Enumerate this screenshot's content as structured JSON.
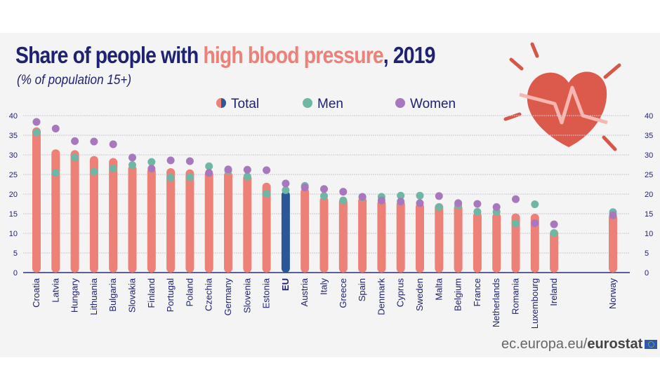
{
  "title_part1": "Share of people with ",
  "title_highlight": "high blood pressure",
  "title_part2": ", 2019",
  "subtitle": "(% of population 15+)",
  "footer": {
    "site": "ec.europa.eu/",
    "brand": "eurostat"
  },
  "colors": {
    "total": "#ed8077",
    "eu": "#2b5799",
    "men": "#6fb7a5",
    "women": "#a977bd",
    "text": "#1f2270"
  },
  "chart_data": {
    "type": "bar",
    "title": "Share of people with high blood pressure, 2019",
    "ylabel": "% of population 15+",
    "ylim": [
      0,
      40
    ],
    "yticks": [
      0,
      5,
      10,
      15,
      20,
      25,
      30,
      35,
      40
    ],
    "legend": [
      "Total",
      "Men",
      "Women"
    ],
    "legend_position": "top",
    "categories": [
      "Croatia",
      "Latvia",
      "Hungary",
      "Lithuania",
      "Bulgaria",
      "Slovakia",
      "Finland",
      "Portugal",
      "Poland",
      "Czechia",
      "Germany",
      "Slovenia",
      "Estonia",
      "EU",
      "Austria",
      "Italy",
      "Greece",
      "Spain",
      "Denmark",
      "Cyprus",
      "Sweden",
      "Malta",
      "Belgium",
      "France",
      "Netherlands",
      "Romania",
      "Luxembourg",
      "Ireland",
      "Norway"
    ],
    "series": [
      {
        "name": "Total",
        "values": [
          37.0,
          31.4,
          31.2,
          29.7,
          29.2,
          27.4,
          26.8,
          26.6,
          26.3,
          26.0,
          25.8,
          25.1,
          22.9,
          20.8,
          21.6,
          19.4,
          19.0,
          19.3,
          18.6,
          18.4,
          17.8,
          17.7,
          17.4,
          15.5,
          15.3,
          15.1,
          15.0,
          11.0,
          15.0
        ]
      },
      {
        "name": "Men",
        "values": [
          35.7,
          25.4,
          29.3,
          25.7,
          26.5,
          27.4,
          28.2,
          24.2,
          24.3,
          27.1,
          26.0,
          24.5,
          20.1,
          21.0,
          22.1,
          19.5,
          18.4,
          19.2,
          19.3,
          19.6,
          19.6,
          16.7,
          17.1,
          15.5,
          15.5,
          12.5,
          17.4,
          10.1,
          15.4
        ]
      },
      {
        "name": "Women",
        "values": [
          38.4,
          36.7,
          33.5,
          33.4,
          32.7,
          29.3,
          26.5,
          28.6,
          28.4,
          25.4,
          26.3,
          26.2,
          26.1,
          22.7,
          21.7,
          21.3,
          20.6,
          19.3,
          18.4,
          18.1,
          17.7,
          19.5,
          17.7,
          17.5,
          16.7,
          18.7,
          12.6,
          12.3,
          14.6
        ]
      }
    ]
  }
}
